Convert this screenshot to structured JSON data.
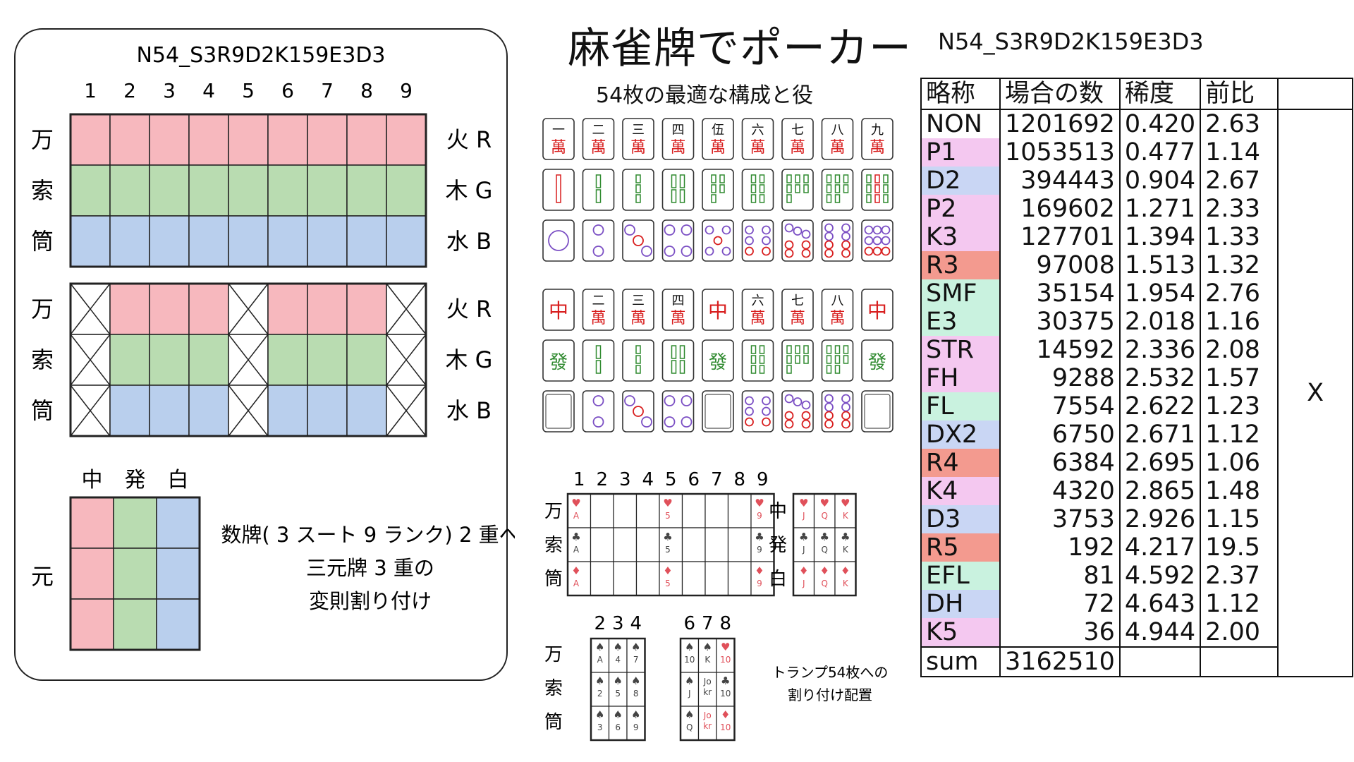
{
  "titles": {
    "main": "麻雀牌でポーカー",
    "subtitle": "54枚の最適な構成と役",
    "code": "N54_S3R9D2K159E3D3"
  },
  "left_panel": {
    "code": "N54_S3R9D2K159E3D3",
    "ranks": [
      "1",
      "2",
      "3",
      "4",
      "5",
      "6",
      "7",
      "8",
      "9"
    ],
    "suits": [
      "万",
      "索",
      "筒"
    ],
    "elements": [
      "火 R",
      "木 G",
      "水 B"
    ],
    "honors_header": [
      "中",
      "発",
      "白"
    ],
    "honors_row_label": "元",
    "note_lines": [
      "数牌( 3 スート 9 ランク) 2 重へ",
      "三元牌 3 重の",
      "変則割り付け"
    ]
  },
  "colors": {
    "red_fill": "#f7b8be",
    "green_fill": "#b9dcb1",
    "blue_fill": "#b9cfed",
    "pink_highlight": "#f4c8f0",
    "blue_highlight": "#c9d6f4",
    "mint_highlight": "#c9f2df",
    "salmon_highlight": "#f39a8f",
    "tile_red": "#d81e1e",
    "tile_green": "#2f8a2f",
    "tile_purple": "#7b4fc4"
  },
  "tiles": {
    "man_numerals": [
      "一",
      "二",
      "三",
      "四",
      "伍",
      "六",
      "七",
      "八",
      "九"
    ],
    "man_suffix": "萬",
    "chun": "中",
    "hatsu": "發"
  },
  "cards": {
    "rank_header": [
      "1",
      "2",
      "3",
      "4",
      "5",
      "6",
      "7",
      "8",
      "9"
    ],
    "suit_labels": [
      "万",
      "索",
      "筒"
    ],
    "main_grid": [
      {
        "col": 1,
        "row": 1,
        "suit": "♥",
        "rank": "A"
      },
      {
        "col": 5,
        "row": 1,
        "suit": "♥",
        "rank": "5"
      },
      {
        "col": 9,
        "row": 1,
        "suit": "♥",
        "rank": "9"
      },
      {
        "col": 1,
        "row": 2,
        "suit": "♣",
        "rank": "A"
      },
      {
        "col": 5,
        "row": 2,
        "suit": "♣",
        "rank": "5"
      },
      {
        "col": 9,
        "row": 2,
        "suit": "♣",
        "rank": "9"
      },
      {
        "col": 1,
        "row": 3,
        "suit": "♦",
        "rank": "A"
      },
      {
        "col": 5,
        "row": 3,
        "suit": "♦",
        "rank": "5"
      },
      {
        "col": 9,
        "row": 3,
        "suit": "♦",
        "rank": "9"
      }
    ],
    "honor_labels": [
      "中",
      "発",
      "白"
    ],
    "honor_grid": [
      [
        {
          "suit": "♥",
          "rank": "J"
        },
        {
          "suit": "♥",
          "rank": "Q"
        },
        {
          "suit": "♥",
          "rank": "K"
        }
      ],
      [
        {
          "suit": "♣",
          "rank": "J"
        },
        {
          "suit": "♣",
          "rank": "Q"
        },
        {
          "suit": "♣",
          "rank": "K"
        }
      ],
      [
        {
          "suit": "♦",
          "rank": "J"
        },
        {
          "suit": "♦",
          "rank": "Q"
        },
        {
          "suit": "♦",
          "rank": "K"
        }
      ]
    ],
    "lower_left_header": [
      "2",
      "3",
      "4"
    ],
    "lower_left_grid": [
      [
        {
          "suit": "♠",
          "rank": "A"
        },
        {
          "suit": "♠",
          "rank": "4"
        },
        {
          "suit": "♠",
          "rank": "7"
        }
      ],
      [
        {
          "suit": "♠",
          "rank": "2"
        },
        {
          "suit": "♠",
          "rank": "5"
        },
        {
          "suit": "♠",
          "rank": "8"
        }
      ],
      [
        {
          "suit": "♠",
          "rank": "3"
        },
        {
          "suit": "♠",
          "rank": "6"
        },
        {
          "suit": "♠",
          "rank": "9"
        }
      ]
    ],
    "lower_right_header": [
      "6",
      "7",
      "8"
    ],
    "lower_right_grid": [
      [
        {
          "suit": "♠",
          "rank": "10"
        },
        {
          "suit": "♠",
          "rank": "K"
        },
        {
          "suit": "♥",
          "rank": "10"
        }
      ],
      [
        {
          "suit": "♠",
          "rank": "J"
        },
        {
          "suit": "",
          "rank": "Jo\nkr"
        },
        {
          "suit": "♣",
          "rank": "10"
        }
      ],
      [
        {
          "suit": "♠",
          "rank": "Q"
        },
        {
          "suit": "",
          "rank": "Jo\nkr",
          "red": true
        },
        {
          "suit": "♦",
          "rank": "10"
        }
      ]
    ],
    "lower_suit_labels": [
      "万",
      "索",
      "筒"
    ],
    "caption_lines": [
      "トランプ54枚への",
      "割り付け配置"
    ]
  },
  "stats_table": {
    "headers": [
      "略称",
      "場合の数",
      "稀度",
      "前比",
      ""
    ],
    "rows": [
      {
        "abbr": "NON",
        "count": "1201692",
        "rarity": "0.420",
        "ratio": "2.63",
        "hl": ""
      },
      {
        "abbr": "P1",
        "count": "1053513",
        "rarity": "0.477",
        "ratio": "1.14",
        "hl": "pink"
      },
      {
        "abbr": "D2",
        "count": "394443",
        "rarity": "0.904",
        "ratio": "2.67",
        "hl": "blue"
      },
      {
        "abbr": "P2",
        "count": "169602",
        "rarity": "1.271",
        "ratio": "2.33",
        "hl": "pink"
      },
      {
        "abbr": "K3",
        "count": "127701",
        "rarity": "1.394",
        "ratio": "1.33",
        "hl": "pink"
      },
      {
        "abbr": "R3",
        "count": "97008",
        "rarity": "1.513",
        "ratio": "1.32",
        "hl": "salmon"
      },
      {
        "abbr": "SMF",
        "count": "35154",
        "rarity": "1.954",
        "ratio": "2.76",
        "hl": "mint"
      },
      {
        "abbr": "E3",
        "count": "30375",
        "rarity": "2.018",
        "ratio": "1.16",
        "hl": "mint"
      },
      {
        "abbr": "STR",
        "count": "14592",
        "rarity": "2.336",
        "ratio": "2.08",
        "hl": "pink"
      },
      {
        "abbr": "FH",
        "count": "9288",
        "rarity": "2.532",
        "ratio": "1.57",
        "hl": "pink"
      },
      {
        "abbr": "FL",
        "count": "7554",
        "rarity": "2.622",
        "ratio": "1.23",
        "hl": "mint"
      },
      {
        "abbr": "DX2",
        "count": "6750",
        "rarity": "2.671",
        "ratio": "1.12",
        "hl": "blue"
      },
      {
        "abbr": "R4",
        "count": "6384",
        "rarity": "2.695",
        "ratio": "1.06",
        "hl": "salmon"
      },
      {
        "abbr": "K4",
        "count": "4320",
        "rarity": "2.865",
        "ratio": "1.48",
        "hl": "pink"
      },
      {
        "abbr": "D3",
        "count": "3753",
        "rarity": "2.926",
        "ratio": "1.15",
        "hl": "blue"
      },
      {
        "abbr": "R5",
        "count": "192",
        "rarity": "4.217",
        "ratio": "19.5",
        "hl": "salmon"
      },
      {
        "abbr": "EFL",
        "count": "81",
        "rarity": "4.592",
        "ratio": "2.37",
        "hl": "mint"
      },
      {
        "abbr": "DH",
        "count": "72",
        "rarity": "4.643",
        "ratio": "1.12",
        "hl": "blue"
      },
      {
        "abbr": "K5",
        "count": "36",
        "rarity": "4.944",
        "ratio": "2.00",
        "hl": "pink"
      }
    ],
    "sum_label": "sum",
    "sum_value": "3162510",
    "x_mark": "X"
  }
}
